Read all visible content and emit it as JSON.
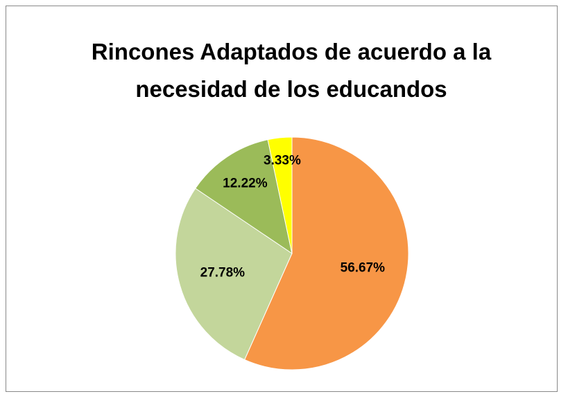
{
  "chart_data": {
    "type": "pie",
    "title": "Rincones Adaptados de acuerdo a la necesidad de los educandos",
    "values": [
      56.67,
      27.78,
      12.22,
      3.33
    ],
    "value_labels": [
      "56.67%",
      "27.78%",
      "12.22%",
      "3.33%"
    ],
    "colors": [
      "#f79646",
      "#c3d69b",
      "#9bbb59",
      "#ffff00"
    ]
  }
}
